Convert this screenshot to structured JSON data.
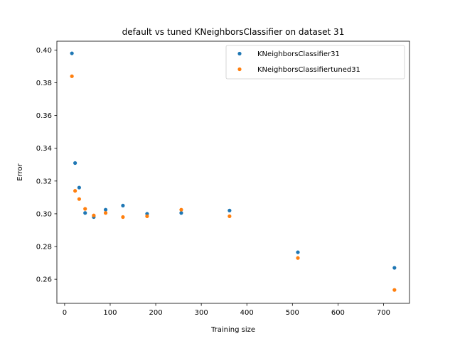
{
  "chart_data": {
    "type": "scatter",
    "title": "default vs tuned KNeighborsClassifier on dataset 31",
    "xlabel": "Training size",
    "ylabel": "Error",
    "xlim": [
      -17,
      757
    ],
    "ylim": [
      0.2453,
      0.4054
    ],
    "xticks": [
      0,
      100,
      200,
      300,
      400,
      500,
      600,
      700
    ],
    "yticks": [
      0.26,
      0.28,
      0.3,
      0.32,
      0.34,
      0.36,
      0.38,
      0.4
    ],
    "ytick_labels": [
      "0.26",
      "0.28",
      "0.30",
      "0.32",
      "0.34",
      "0.36",
      "0.38",
      "0.40"
    ],
    "grid": false,
    "legend_position": "top-right",
    "series": [
      {
        "name": "KNeighborsClassifier31",
        "color": "#1f77b4",
        "points": [
          [
            16,
            0.398
          ],
          [
            23,
            0.331
          ],
          [
            32,
            0.316
          ],
          [
            45,
            0.3005
          ],
          [
            64,
            0.298
          ],
          [
            90,
            0.3025
          ],
          [
            128,
            0.305
          ],
          [
            181,
            0.3
          ],
          [
            256,
            0.3005
          ],
          [
            362,
            0.302
          ],
          [
            512,
            0.2765
          ],
          [
            724,
            0.267
          ]
        ]
      },
      {
        "name": "KNeighborsClassifiertuned31",
        "color": "#ff7f0e",
        "points": [
          [
            16,
            0.384
          ],
          [
            23,
            0.314
          ],
          [
            32,
            0.309
          ],
          [
            45,
            0.303
          ],
          [
            64,
            0.299
          ],
          [
            90,
            0.3005
          ],
          [
            128,
            0.298
          ],
          [
            181,
            0.2985
          ],
          [
            256,
            0.3025
          ],
          [
            362,
            0.2985
          ],
          [
            512,
            0.273
          ],
          [
            724,
            0.2535
          ]
        ]
      }
    ]
  }
}
